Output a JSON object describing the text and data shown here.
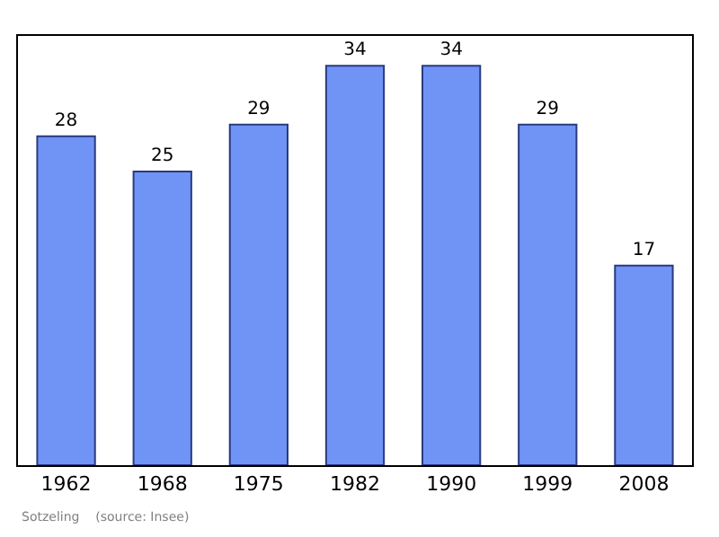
{
  "chart_data": {
    "type": "bar",
    "categories": [
      "1962",
      "1968",
      "1975",
      "1982",
      "1990",
      "1999",
      "2008"
    ],
    "values": [
      28,
      25,
      29,
      34,
      34,
      29,
      17
    ],
    "color": "#7094f5",
    "data_labels": true,
    "tick_labels": "x",
    "annotations": [
      "Sotzeling    (source: Insee)"
    ]
  }
}
